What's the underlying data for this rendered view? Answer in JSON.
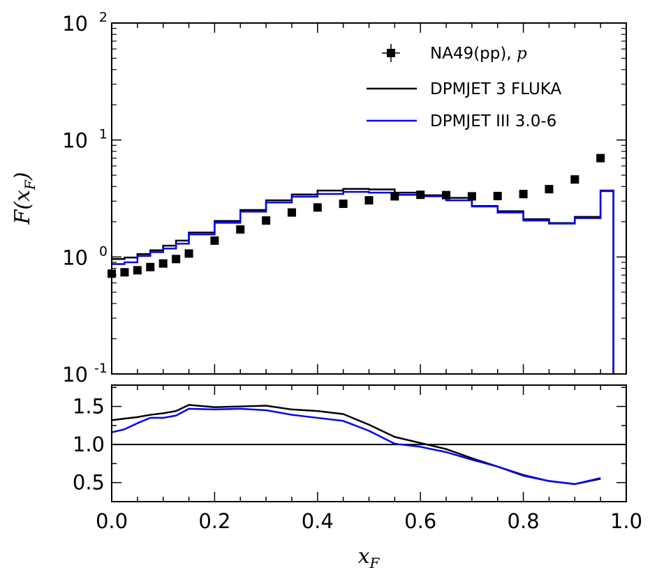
{
  "chart_data": [
    {
      "type": "line",
      "panel": "main",
      "ylabel": "F(x_F)",
      "ylabel_main": "F(x",
      "ylabel_sub": "F",
      "ylabel_close": ")",
      "yscale": "log",
      "xlim": [
        0.0,
        1.0
      ],
      "ylim": [
        0.1,
        100
      ],
      "y_ticks": [
        {
          "value": 0.1,
          "base": "10",
          "exp": "-1"
        },
        {
          "value": 1,
          "base": "10",
          "exp": "0"
        },
        {
          "value": 10,
          "base": "10",
          "exp": "1"
        },
        {
          "value": 100,
          "base": "10",
          "exp": "2"
        }
      ],
      "legend": "top-right",
      "legend_entries": {
        "na49": {
          "text": "NA49(pp),",
          "italic": "p"
        },
        "fluka": {
          "text": "DPMJET 3 FLUKA"
        },
        "dpm3": {
          "text": "DPMJET III 3.0-6"
        }
      },
      "series": [
        {
          "name": "NA49(pp), p",
          "kind": "scatter",
          "color": "#000000",
          "x": [
            0.0,
            0.025,
            0.05,
            0.075,
            0.1,
            0.125,
            0.15,
            0.2,
            0.25,
            0.3,
            0.35,
            0.4,
            0.45,
            0.5,
            0.55,
            0.6,
            0.65,
            0.7,
            0.75,
            0.8,
            0.85,
            0.9,
            0.95
          ],
          "y": [
            0.72,
            0.74,
            0.77,
            0.82,
            0.88,
            0.96,
            1.07,
            1.38,
            1.72,
            2.05,
            2.4,
            2.65,
            2.85,
            3.05,
            3.3,
            3.4,
            3.38,
            3.3,
            3.32,
            3.45,
            3.8,
            4.6,
            7.0
          ]
        },
        {
          "name": "DPMJET 3 FLUKA",
          "kind": "step",
          "color": "#000000",
          "edges": [
            0.0,
            0.025,
            0.05,
            0.075,
            0.1,
            0.125,
            0.15,
            0.2,
            0.25,
            0.3,
            0.35,
            0.4,
            0.45,
            0.5,
            0.55,
            0.6,
            0.65,
            0.7,
            0.75,
            0.8,
            0.85,
            0.9,
            0.95,
            0.975
          ],
          "values": [
            0.96,
            0.99,
            1.06,
            1.14,
            1.25,
            1.38,
            1.62,
            2.03,
            2.52,
            3.05,
            3.42,
            3.7,
            3.82,
            3.78,
            3.55,
            3.37,
            3.2,
            2.73,
            2.46,
            2.1,
            1.95,
            2.2,
            3.7
          ],
          "drop_to": 0.1
        },
        {
          "name": "DPMJET III 3.0-6",
          "kind": "step",
          "color": "#0000ff",
          "edges": [
            0.0,
            0.025,
            0.05,
            0.075,
            0.1,
            0.125,
            0.15,
            0.2,
            0.25,
            0.3,
            0.35,
            0.4,
            0.45,
            0.5,
            0.55,
            0.6,
            0.65,
            0.7,
            0.75,
            0.8,
            0.85,
            0.9,
            0.95,
            0.975
          ],
          "values": [
            0.87,
            0.9,
            1.02,
            1.1,
            1.18,
            1.3,
            1.56,
            1.96,
            2.44,
            2.92,
            3.28,
            3.46,
            3.6,
            3.55,
            3.4,
            3.3,
            3.05,
            2.7,
            2.4,
            2.05,
            1.93,
            2.15,
            3.65
          ],
          "drop_to": 0.1
        }
      ]
    },
    {
      "type": "line",
      "panel": "ratio",
      "xlabel": "x_F",
      "xlabel_main": "x",
      "xlabel_sub": "F",
      "xlim": [
        0.0,
        1.0
      ],
      "ylim": [
        0.25,
        1.78
      ],
      "x_ticks": [
        "0.0",
        "0.2",
        "0.4",
        "0.6",
        "0.8",
        "1.0"
      ],
      "y_ticks": [
        "0.5",
        "1.0",
        "1.5"
      ],
      "reference_line": 1.0,
      "series": [
        {
          "name": "DPMJET 3 FLUKA",
          "color": "#000000",
          "x": [
            0.0,
            0.025,
            0.05,
            0.075,
            0.1,
            0.125,
            0.15,
            0.2,
            0.25,
            0.3,
            0.35,
            0.4,
            0.45,
            0.5,
            0.55,
            0.6,
            0.65,
            0.7,
            0.75,
            0.8,
            0.85,
            0.9,
            0.95
          ],
          "y": [
            1.32,
            1.34,
            1.36,
            1.39,
            1.41,
            1.44,
            1.52,
            1.49,
            1.5,
            1.51,
            1.46,
            1.44,
            1.4,
            1.26,
            1.1,
            1.02,
            0.94,
            0.82,
            0.71,
            0.6,
            0.52,
            0.48,
            0.55
          ]
        },
        {
          "name": "DPMJET III 3.0-6",
          "color": "#0000ff",
          "x": [
            0.0,
            0.025,
            0.05,
            0.075,
            0.1,
            0.125,
            0.15,
            0.2,
            0.25,
            0.3,
            0.35,
            0.4,
            0.45,
            0.5,
            0.55,
            0.6,
            0.65,
            0.7,
            0.75,
            0.8,
            0.85,
            0.9,
            0.95
          ],
          "y": [
            1.16,
            1.2,
            1.28,
            1.35,
            1.35,
            1.38,
            1.47,
            1.46,
            1.47,
            1.45,
            1.39,
            1.35,
            1.31,
            1.18,
            1.01,
            0.97,
            0.9,
            0.8,
            0.71,
            0.59,
            0.52,
            0.48,
            0.56
          ]
        }
      ]
    }
  ]
}
